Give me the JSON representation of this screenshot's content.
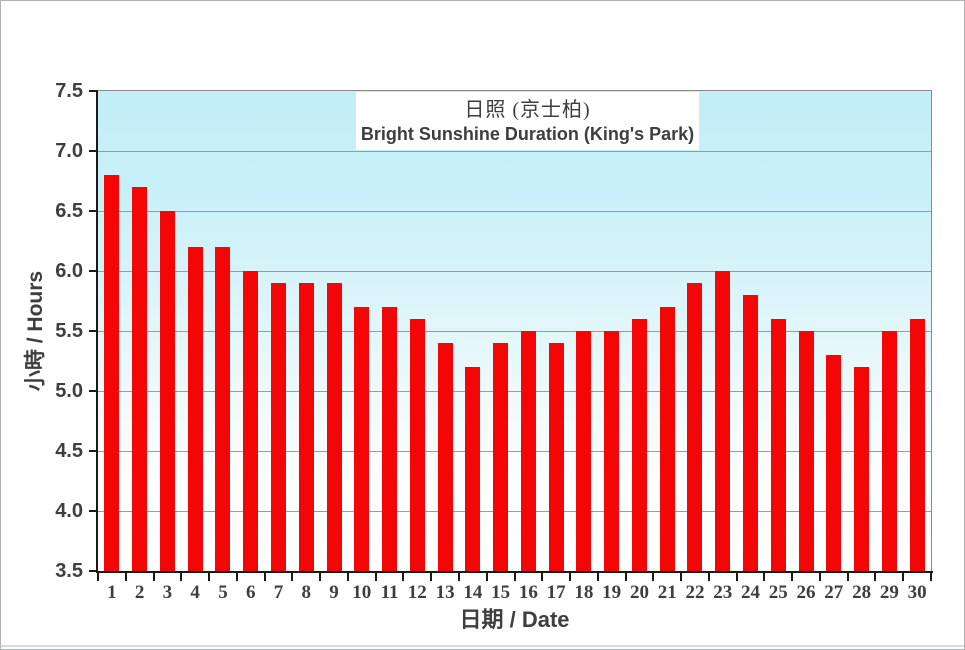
{
  "page": {
    "divider_color": "#cfdde6",
    "text_color": "#3e3e3e"
  },
  "chart_data": {
    "type": "bar",
    "title_zh": "日照 (京士柏)",
    "title_en": "Bright Sunshine  Duration (King's Park)",
    "ylabel": "小時 / Hours",
    "xlabel": "日期 / Date",
    "ylim": [
      3.5,
      7.5
    ],
    "ytick_step": 0.5,
    "ytick_labels": [
      "7.5",
      "7.0",
      "6.5",
      "6.0",
      "5.5",
      "5.0",
      "4.5",
      "4.0",
      "3.5"
    ],
    "grid": true,
    "legend": "none",
    "bar_color": "#f40606",
    "plot_bg_top": "#c3eef7",
    "gridline_color": "#9a9a9a",
    "axis_color": "#1a1a1a",
    "categories": [
      "1",
      "2",
      "3",
      "4",
      "5",
      "6",
      "7",
      "8",
      "9",
      "10",
      "11",
      "12",
      "13",
      "14",
      "15",
      "16",
      "17",
      "18",
      "19",
      "20",
      "21",
      "22",
      "23",
      "24",
      "25",
      "26",
      "27",
      "28",
      "29",
      "30"
    ],
    "values": [
      6.8,
      6.7,
      6.5,
      6.2,
      6.2,
      6.0,
      5.9,
      5.9,
      5.9,
      5.7,
      5.7,
      5.6,
      5.4,
      5.2,
      5.4,
      5.5,
      5.4,
      5.5,
      5.5,
      5.6,
      5.7,
      5.9,
      6.0,
      5.8,
      5.6,
      5.5,
      5.3,
      5.2,
      5.5,
      5.6
    ]
  }
}
